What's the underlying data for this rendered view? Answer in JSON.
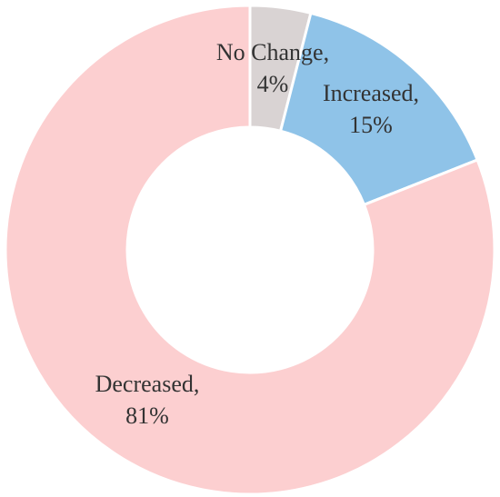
{
  "chart_data": {
    "type": "donut",
    "categories": [
      "No Change,",
      "Increased,",
      "Decreased,"
    ],
    "values": [
      4,
      15,
      81
    ],
    "value_labels": [
      "4%",
      "15%",
      "81%"
    ],
    "colors": [
      "#d9d3d3",
      "#8fc3e8",
      "#fccfd0"
    ]
  }
}
